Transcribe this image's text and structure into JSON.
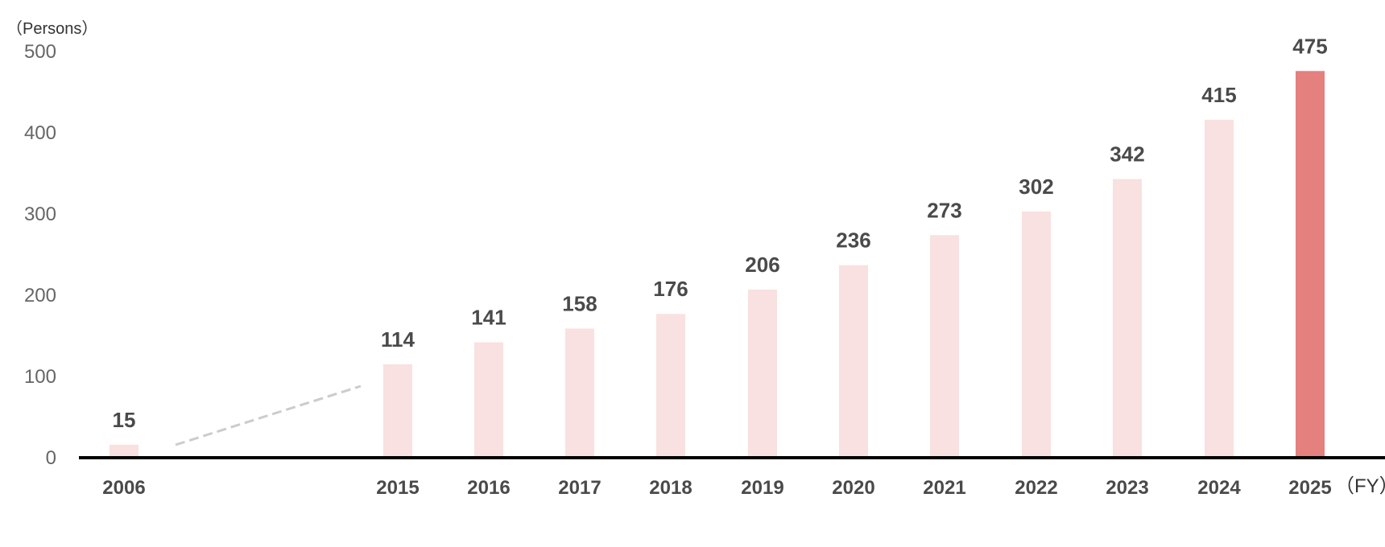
{
  "chart_data": {
    "type": "bar",
    "y_unit_label": "（Persons）",
    "x_unit_label": "（FY）",
    "categories": [
      "2006",
      "2015",
      "2016",
      "2017",
      "2018",
      "2019",
      "2020",
      "2021",
      "2022",
      "2023",
      "2024",
      "2025"
    ],
    "values": [
      15,
      114,
      141,
      158,
      176,
      206,
      236,
      273,
      302,
      342,
      415,
      475
    ],
    "data_labels": [
      "15",
      "114",
      "141",
      "158",
      "176",
      "206",
      "236",
      "273",
      "302",
      "342",
      "415",
      "475"
    ],
    "y_ticks": [
      "0",
      "100",
      "200",
      "300",
      "400",
      "500"
    ],
    "ylim": [
      0,
      500
    ],
    "grid": false,
    "axis_break_between": [
      "2006",
      "2015"
    ],
    "colors": {
      "bar": "#f8e1e0",
      "highlight_bar": "#e4807e",
      "axis": "#000000",
      "break_line": "#cccccc"
    },
    "highlight_category": "2025"
  }
}
